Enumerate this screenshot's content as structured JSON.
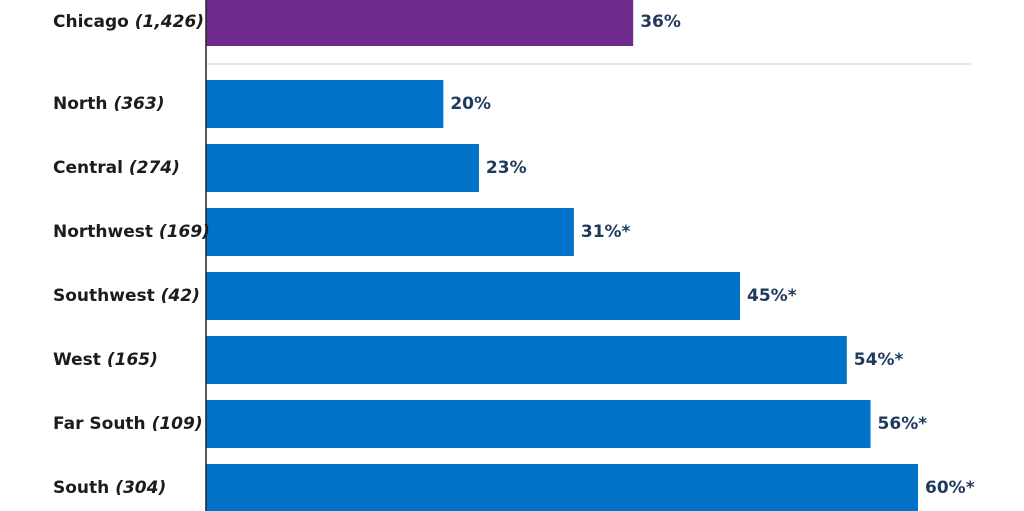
{
  "chart_data": {
    "type": "bar",
    "orientation": "horizontal",
    "categories": [
      {
        "name": "Chicago",
        "n": "(1,426)"
      },
      {
        "name": "North",
        "n": "(363)"
      },
      {
        "name": "Central",
        "n": "(274)"
      },
      {
        "name": "Northwest",
        "n": "(169)"
      },
      {
        "name": "Southwest",
        "n": "(42)"
      },
      {
        "name": "West",
        "n": "(165)"
      },
      {
        "name": "Far South",
        "n": "(109)"
      },
      {
        "name": "South",
        "n": "(304)"
      }
    ],
    "values": [
      36,
      20,
      23,
      31,
      45,
      54,
      56,
      60
    ],
    "value_labels": [
      "36%",
      "20%",
      "23%",
      "31%*",
      "45%*",
      "54%*",
      "56%*",
      "60%*"
    ],
    "xlim": [
      0,
      60
    ],
    "grid": false,
    "colors": {
      "reference_bar": "#6f2c8d",
      "bars": "#0073c8",
      "value_text": "#1f3a5c",
      "category_text": "#1c1c1c",
      "axis": "#222222",
      "separator": "#cccccc"
    }
  }
}
